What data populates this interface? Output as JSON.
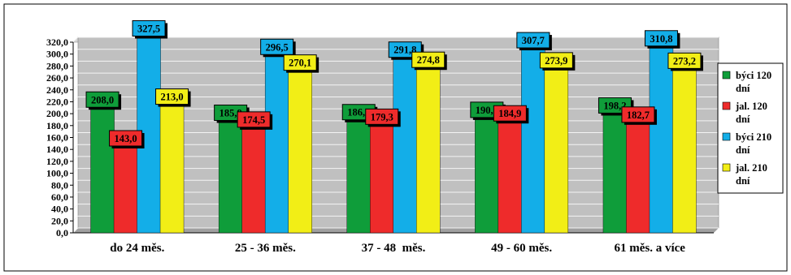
{
  "chart_data": {
    "type": "bar",
    "categories": [
      "do 24 měs.",
      "25 - 36 měs.",
      "37 - 48  měs.",
      "49 - 60 měs.",
      "61 měs. a více"
    ],
    "series": [
      {
        "name": "býci 120 dní",
        "color": "#0f9d3a",
        "values": [
          208.0,
          185.9,
          186.9,
          190.8,
          198.2
        ],
        "labels": [
          "208,0",
          "185,9",
          "186,9",
          "190,8",
          "198,2"
        ]
      },
      {
        "name": "jal. 120 dní",
        "color": "#ee2b2b",
        "values": [
          143.0,
          174.5,
          179.3,
          184.9,
          182.7
        ],
        "labels": [
          "143,0",
          "174,5",
          "179,3",
          "184,9",
          "182,7"
        ]
      },
      {
        "name": "býci 210 dní",
        "color": "#13aee8",
        "values": [
          327.5,
          296.5,
          291.8,
          307.7,
          310.8
        ],
        "labels": [
          "327,5",
          "296,5",
          "291,8",
          "307,7",
          "310,8"
        ]
      },
      {
        "name": "jal. 210 dní",
        "color": "#f2ee16",
        "values": [
          213.0,
          270.1,
          274.8,
          273.9,
          273.2
        ],
        "labels": [
          "213,0",
          "270,1",
          "274,8",
          "273,9",
          "273,2"
        ]
      }
    ],
    "legend_lines": [
      [
        "býci 120",
        "dní"
      ],
      [
        "jal. 120",
        "dní"
      ],
      [
        "býci 210",
        "dní"
      ],
      [
        "jal. 210",
        "dní"
      ]
    ],
    "yticks": [
      "0,0",
      "20,0",
      "40,0",
      "60,0",
      "80,0",
      "100,0",
      "120,0",
      "140,0",
      "160,0",
      "180,0",
      "200,0",
      "220,0",
      "240,0",
      "260,0",
      "280,0",
      "300,0",
      "320,0"
    ],
    "ylim": [
      0,
      320
    ],
    "ystep": 20,
    "grid": true,
    "legend_position": "right",
    "plot_background": "#c0c0c0"
  }
}
